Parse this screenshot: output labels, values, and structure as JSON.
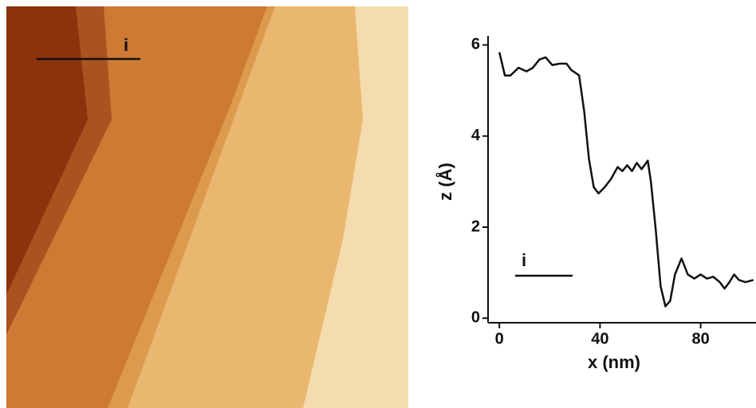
{
  "image_label": "i",
  "chart_data": {
    "type": "line",
    "xlabel": "x (nm)",
    "ylabel": "z (Å)",
    "annotation": "i",
    "color": "#111111",
    "x": [
      0,
      2.2,
      4.4,
      7.6,
      10.8,
      13.3,
      15.9,
      18.4,
      21,
      24,
      26.7,
      28.6,
      30.5,
      31.7,
      33.7,
      35.6,
      37.5,
      39.4,
      41.9,
      44.4,
      47,
      48.9,
      50.8,
      52.7,
      54.6,
      56.5,
      59,
      60.3,
      62.2,
      64.1,
      66,
      67.9,
      69.8,
      72.4,
      74.9,
      77.5,
      80,
      82.5,
      85,
      87.6,
      89.5,
      91.4,
      93.3,
      95.2,
      97.8,
      101
    ],
    "values": [
      5.84,
      5.33,
      5.33,
      5.5,
      5.42,
      5.5,
      5.68,
      5.73,
      5.56,
      5.59,
      5.59,
      5.45,
      5.38,
      5.33,
      4.55,
      3.5,
      2.88,
      2.74,
      2.88,
      3.06,
      3.32,
      3.23,
      3.36,
      3.23,
      3.41,
      3.27,
      3.46,
      2.97,
      1.92,
      0.7,
      0.26,
      0.38,
      0.96,
      1.31,
      0.96,
      0.87,
      0.96,
      0.87,
      0.91,
      0.79,
      0.65,
      0.79,
      0.96,
      0.84,
      0.79,
      0.84
    ],
    "xlim": [
      -4.5,
      102
    ],
    "ylim": [
      -0.1,
      6.2
    ],
    "xticks": [
      0,
      40,
      80
    ],
    "yticks": [
      0,
      2,
      4,
      6
    ]
  }
}
